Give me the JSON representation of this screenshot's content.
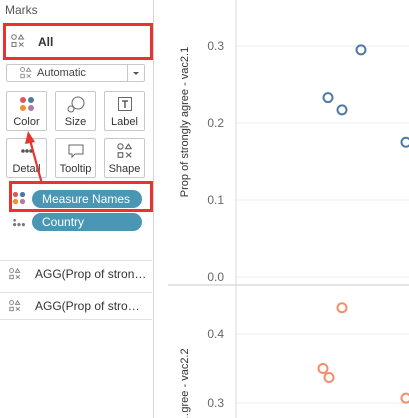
{
  "marks": {
    "title": "Marks",
    "all_label": "All",
    "mark_type": "Automatic",
    "buttons": {
      "color": "Color",
      "size": "Size",
      "label": "Label",
      "detail": "Detail",
      "tooltip": "Tooltip",
      "shape": "Shape"
    },
    "fields": {
      "measure_names": "Measure Names",
      "country": "Country"
    },
    "agg_rows": [
      "AGG(Prop of stron…",
      "AGG(Prop of stro…"
    ]
  },
  "chart_data": [
    {
      "type": "scatter",
      "ylabel": "Prop of strongly agree - vac2.1",
      "y_ticks": [
        "0.3",
        "0.2",
        "0.1",
        "0.0"
      ],
      "points": [
        [
          0.295
        ],
        [
          0.233
        ],
        [
          0.217
        ],
        [
          0.175
        ]
      ],
      "color": "#4e79a7"
    },
    {
      "type": "scatter",
      "ylabel": "…gree - vac2.2",
      "y_ticks": [
        "0.4",
        "0.3"
      ],
      "points": [
        [
          0.438
        ],
        [
          0.35
        ],
        [
          0.337
        ],
        [
          0.307
        ]
      ],
      "color": "#f28e6b"
    }
  ],
  "colors": {
    "highlight": "#e8332f",
    "pill": "#4a97b5"
  }
}
